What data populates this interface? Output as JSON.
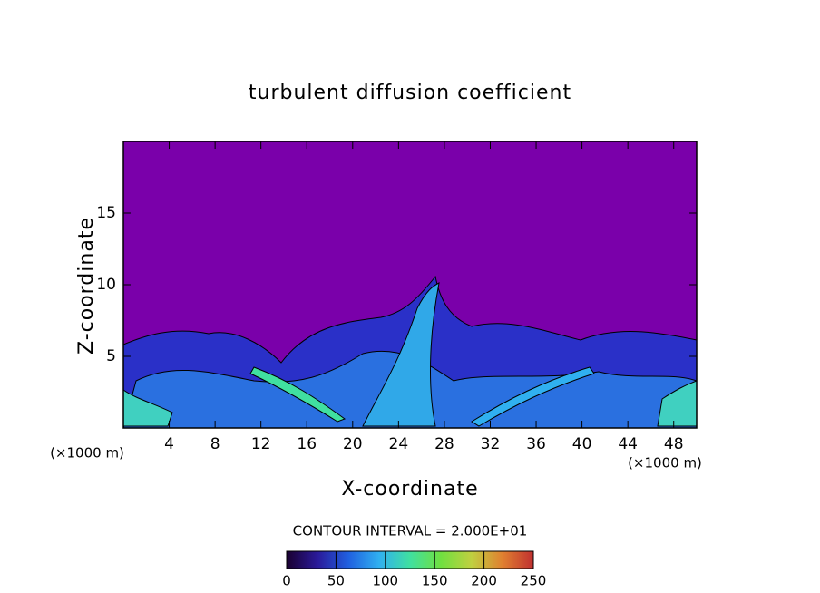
{
  "chart_data": {
    "type": "contour",
    "title": "turbulent diffusion coefficient",
    "x_label": "X-coordinate",
    "y_label": "Z-coordinate",
    "x_unit": "(×1000 m)",
    "y_unit": "(×1000 m)",
    "contour_note": "CONTOUR INTERVAL = 2.000E+01",
    "xlim": [
      0,
      50
    ],
    "xticks": [
      4,
      8,
      12,
      16,
      20,
      24,
      28,
      32,
      36,
      40,
      44,
      48
    ],
    "ylim": [
      0,
      20
    ],
    "yticks": [
      5,
      10,
      15
    ],
    "colorbar": {
      "lim": [
        0,
        250
      ],
      "ticks": [
        0,
        50,
        100,
        150,
        200,
        250
      ],
      "colors": [
        "#1a0030",
        "#2a1a9a",
        "#2060e0",
        "#30b0f0",
        "#40e0a0",
        "#70e040",
        "#c0d040",
        "#e08030",
        "#c03030"
      ]
    }
  }
}
